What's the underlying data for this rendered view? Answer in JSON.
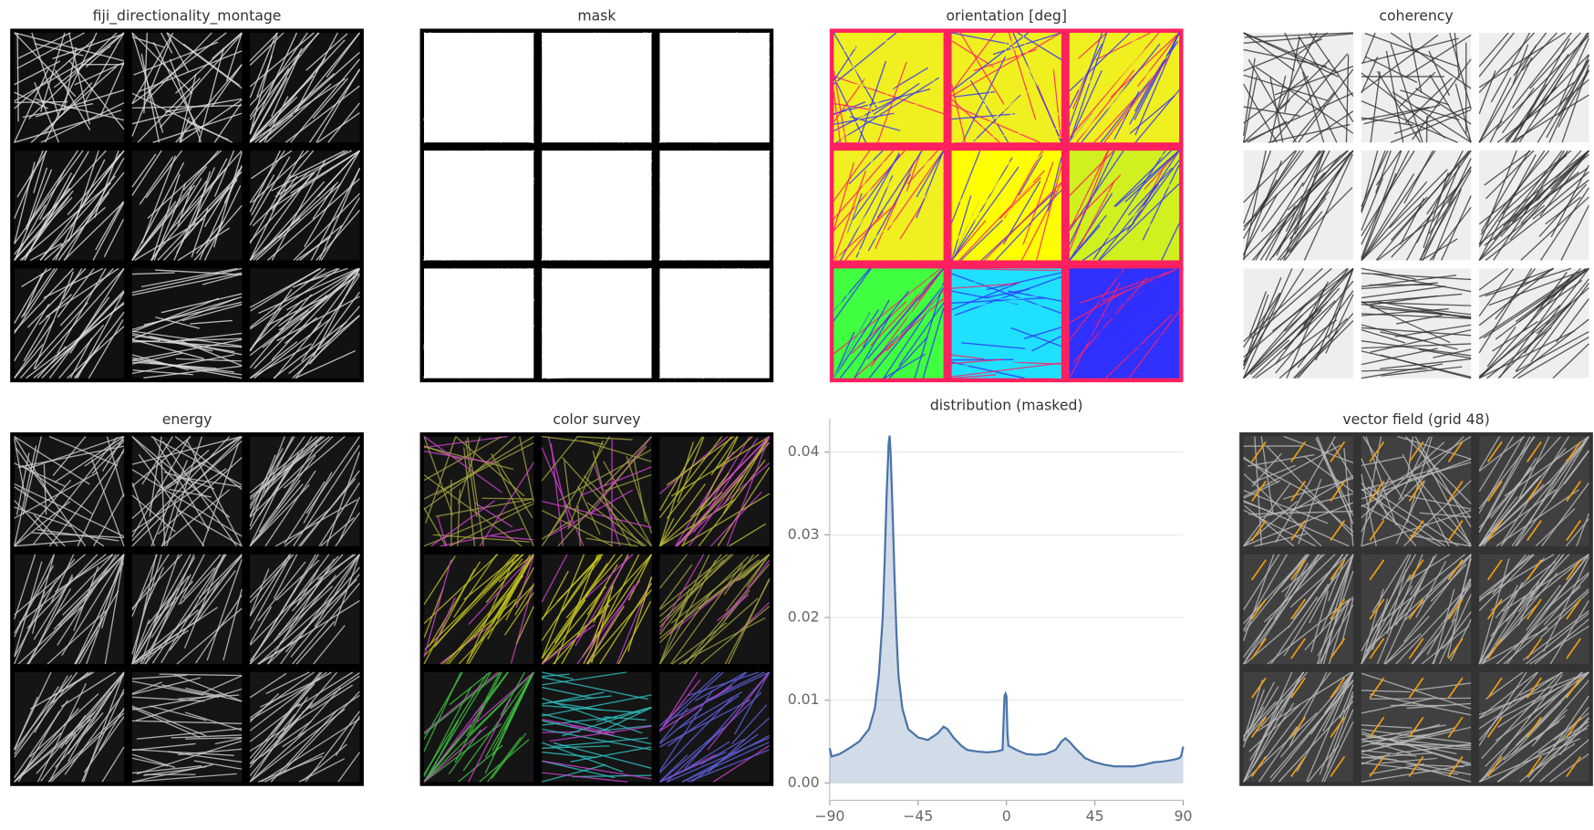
{
  "panels": [
    {
      "title": "fiji_directionality_montage"
    },
    {
      "title": "mask"
    },
    {
      "title": "orientation [deg]"
    },
    {
      "title": "coherency"
    },
    {
      "title": "energy"
    },
    {
      "title": "color survey"
    },
    {
      "title": "vector field (grid 48)"
    }
  ],
  "chart_data": {
    "type": "area",
    "title": "distribution (masked)",
    "x": [
      -90,
      -89,
      -85,
      -80,
      -75,
      -70,
      -67,
      -65,
      -63,
      -62,
      -61,
      -60,
      -59.5,
      -59,
      -58,
      -57,
      -56,
      -55,
      -53,
      -50,
      -45,
      -40,
      -35,
      -32,
      -30,
      -27,
      -23,
      -20,
      -15,
      -10,
      -5,
      -2,
      -1,
      -0.5,
      0,
      0.5,
      1,
      5,
      10,
      15,
      20,
      25,
      28,
      30,
      32,
      35,
      40,
      45,
      50,
      55,
      60,
      65,
      70,
      75,
      80,
      85,
      88,
      89,
      90
    ],
    "values": [
      0.0042,
      0.0032,
      0.0035,
      0.0042,
      0.005,
      0.0065,
      0.009,
      0.013,
      0.02,
      0.027,
      0.035,
      0.041,
      0.042,
      0.04,
      0.033,
      0.025,
      0.018,
      0.013,
      0.009,
      0.0065,
      0.0055,
      0.0052,
      0.006,
      0.0068,
      0.0065,
      0.0055,
      0.0045,
      0.004,
      0.0038,
      0.0037,
      0.0038,
      0.004,
      0.0105,
      0.0108,
      0.0105,
      0.006,
      0.0045,
      0.004,
      0.0035,
      0.0034,
      0.0035,
      0.004,
      0.005,
      0.0054,
      0.005,
      0.0042,
      0.003,
      0.0025,
      0.0022,
      0.002,
      0.002,
      0.002,
      0.0022,
      0.0025,
      0.0026,
      0.0028,
      0.003,
      0.0033,
      0.0044
    ],
    "color": "#4a74a8",
    "xlim": [
      -90,
      90
    ],
    "xticks": [
      {
        "value": -90,
        "label": "−90"
      },
      {
        "value": -45,
        "label": "−45"
      },
      0,
      45,
      90
    ],
    "ylim": [
      -0.0021,
      0.044
    ],
    "yticks": [
      {
        "value": 0,
        "label": "0.00"
      },
      {
        "value": 0.01,
        "label": "0.01"
      },
      {
        "value": 0.02,
        "label": "0.02"
      },
      {
        "value": 0.03,
        "label": "0.03"
      },
      {
        "value": 0.04,
        "label": "0.04"
      }
    ],
    "grid": true
  }
}
